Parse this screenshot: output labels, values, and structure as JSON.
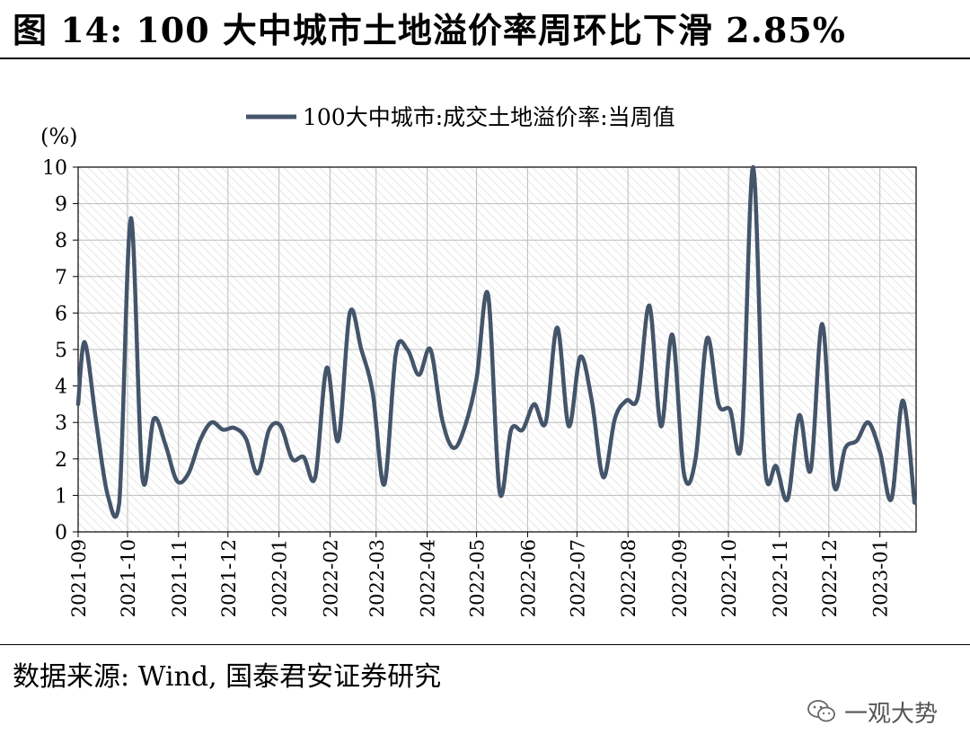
{
  "title": "图 14:  100 大中城市土地溢价率周环比下滑 2.85%",
  "source": "数据来源:  Wind,  国泰君安证券研究",
  "watermark": {
    "text": "一观大势",
    "icon": "wechat-icon"
  },
  "chart_data": {
    "type": "line",
    "ylabel": "(%)",
    "ylim": [
      0,
      10
    ],
    "yticks": [
      "0",
      "1",
      "2",
      "3",
      "4",
      "5",
      "6",
      "7",
      "8",
      "9",
      "10"
    ],
    "xticks": [
      "2021-09",
      "2021-10",
      "2021-11",
      "2021-12",
      "2022-01",
      "2022-02",
      "2022-03",
      "2022-04",
      "2022-05",
      "2022-06",
      "2022-07",
      "2022-08",
      "2022-09",
      "2022-10",
      "2022-11",
      "2022-12",
      "2023-01"
    ],
    "grid": true,
    "legend_position": "top-center",
    "series": [
      {
        "name": "100大中城市:成交土地溢价率:当周值",
        "color": "#44546a",
        "points": [
          [
            "2021-09-01",
            3.5
          ],
          [
            "2021-09-05",
            5.2
          ],
          [
            "2021-09-12",
            3.0
          ],
          [
            "2021-09-19",
            1.0
          ],
          [
            "2021-09-26",
            0.8
          ],
          [
            "2021-10-03",
            8.6
          ],
          [
            "2021-10-10",
            1.5
          ],
          [
            "2021-10-17",
            3.1
          ],
          [
            "2021-10-24",
            2.4
          ],
          [
            "2021-10-31",
            1.4
          ],
          [
            "2021-11-07",
            1.6
          ],
          [
            "2021-11-14",
            2.5
          ],
          [
            "2021-11-21",
            3.0
          ],
          [
            "2021-11-28",
            2.8
          ],
          [
            "2021-12-05",
            2.85
          ],
          [
            "2021-12-12",
            2.55
          ],
          [
            "2021-12-19",
            1.6
          ],
          [
            "2021-12-26",
            2.8
          ],
          [
            "2022-01-02",
            2.9
          ],
          [
            "2022-01-09",
            2.0
          ],
          [
            "2022-01-16",
            2.05
          ],
          [
            "2022-01-23",
            1.5
          ],
          [
            "2022-01-30",
            4.5
          ],
          [
            "2022-02-06",
            2.5
          ],
          [
            "2022-02-13",
            6.0
          ],
          [
            "2022-02-20",
            5.0
          ],
          [
            "2022-02-27",
            3.8
          ],
          [
            "2022-03-06",
            1.3
          ],
          [
            "2022-03-13",
            4.9
          ],
          [
            "2022-03-20",
            5.0
          ],
          [
            "2022-03-27",
            4.3
          ],
          [
            "2022-04-03",
            5.0
          ],
          [
            "2022-04-10",
            3.1
          ],
          [
            "2022-04-17",
            2.3
          ],
          [
            "2022-04-24",
            2.9
          ],
          [
            "2022-05-01",
            4.2
          ],
          [
            "2022-05-08",
            6.5
          ],
          [
            "2022-05-15",
            1.1
          ],
          [
            "2022-05-22",
            2.8
          ],
          [
            "2022-05-29",
            2.8
          ],
          [
            "2022-06-05",
            3.5
          ],
          [
            "2022-06-12",
            3.0
          ],
          [
            "2022-06-19",
            5.6
          ],
          [
            "2022-06-26",
            2.9
          ],
          [
            "2022-07-03",
            4.8
          ],
          [
            "2022-07-10",
            3.6
          ],
          [
            "2022-07-17",
            1.5
          ],
          [
            "2022-07-24",
            3.1
          ],
          [
            "2022-07-31",
            3.6
          ],
          [
            "2022-08-07",
            3.7
          ],
          [
            "2022-08-14",
            6.2
          ],
          [
            "2022-08-21",
            2.9
          ],
          [
            "2022-08-28",
            5.4
          ],
          [
            "2022-09-04",
            1.6
          ],
          [
            "2022-09-11",
            2.0
          ],
          [
            "2022-09-18",
            5.3
          ],
          [
            "2022-09-25",
            3.5
          ],
          [
            "2022-10-02",
            3.35
          ],
          [
            "2022-10-09",
            2.5
          ],
          [
            "2022-10-16",
            10.0
          ],
          [
            "2022-10-23",
            1.9
          ],
          [
            "2022-10-30",
            1.8
          ],
          [
            "2022-11-06",
            0.9
          ],
          [
            "2022-11-13",
            3.2
          ],
          [
            "2022-11-20",
            1.7
          ],
          [
            "2022-11-27",
            5.7
          ],
          [
            "2022-12-04",
            1.3
          ],
          [
            "2022-12-11",
            2.3
          ],
          [
            "2022-12-18",
            2.5
          ],
          [
            "2022-12-25",
            3.0
          ],
          [
            "2023-01-01",
            2.2
          ],
          [
            "2023-01-08",
            0.9
          ],
          [
            "2023-01-15",
            3.6
          ],
          [
            "2023-01-22",
            0.8
          ]
        ]
      }
    ]
  }
}
